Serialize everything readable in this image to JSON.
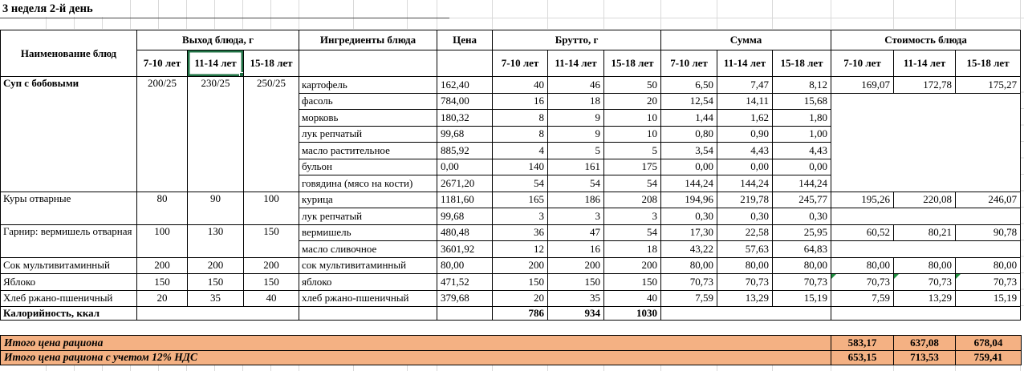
{
  "title": "3 неделя 2-й день",
  "selection": {
    "selected_cell_label": "11-14 лет"
  },
  "colors": {
    "total_row_bg": "#F4B183",
    "selection_border": "#217346",
    "flag_triangle": "#1E8E3E"
  },
  "table": {
    "headers": {
      "name": "Наименование блюд",
      "output": "Выход блюда, г",
      "ingredients": "Ингредиенты блюда",
      "price": "Цена",
      "gross": "Брутто, г",
      "sum": "Сумма",
      "cost": "Стоимость блюда",
      "age1": "7-10 лет",
      "age2": "11-14 лет",
      "age3": "15-18 лет"
    },
    "dishes": [
      {
        "name": "Суп с бобовыми",
        "output": [
          "200/25",
          "230/25",
          "250/25"
        ],
        "cost": [
          "169,07",
          "172,78",
          "175,27"
        ],
        "rows": [
          {
            "ingredient": "картофель",
            "price": "162,40",
            "gross": [
              "40",
              "46",
              "50"
            ],
            "sum": [
              "6,50",
              "7,47",
              "8,12"
            ]
          },
          {
            "ingredient": "фасоль",
            "price": "784,00",
            "gross": [
              "16",
              "18",
              "20"
            ],
            "sum": [
              "12,54",
              "14,11",
              "15,68"
            ]
          },
          {
            "ingredient": "морковь",
            "price": "180,32",
            "gross": [
              "8",
              "9",
              "10"
            ],
            "sum": [
              "1,44",
              "1,62",
              "1,80"
            ]
          },
          {
            "ingredient": "лук репчатый",
            "price": "99,68",
            "gross": [
              "8",
              "9",
              "10"
            ],
            "sum": [
              "0,80",
              "0,90",
              "1,00"
            ]
          },
          {
            "ingredient": "масло растительное",
            "price": "885,92",
            "gross": [
              "4",
              "5",
              "5"
            ],
            "sum": [
              "3,54",
              "4,43",
              "4,43"
            ]
          },
          {
            "ingredient": "бульон",
            "price": "0,00",
            "gross": [
              "140",
              "161",
              "175"
            ],
            "sum": [
              "0,00",
              "0,00",
              "0,00"
            ]
          },
          {
            "ingredient": "говядина (мясо на кости)",
            "price": "2671,20",
            "gross": [
              "54",
              "54",
              "54"
            ],
            "sum": [
              "144,24",
              "144,24",
              "144,24"
            ]
          }
        ]
      },
      {
        "name": "Куры отварные",
        "output": [
          "80",
          "90",
          "100"
        ],
        "cost": [
          "195,26",
          "220,08",
          "246,07"
        ],
        "rows": [
          {
            "ingredient": "курица",
            "price": "1181,60",
            "gross": [
              "165",
              "186",
              "208"
            ],
            "sum": [
              "194,96",
              "219,78",
              "245,77"
            ]
          },
          {
            "ingredient": "лук репчатый",
            "price": "99,68",
            "gross": [
              "3",
              "3",
              "3"
            ],
            "sum": [
              "0,30",
              "0,30",
              "0,30"
            ]
          }
        ]
      },
      {
        "name": "Гарнир: вермишель отварная",
        "output": [
          "100",
          "130",
          "150"
        ],
        "cost": [
          "60,52",
          "80,21",
          "90,78"
        ],
        "rows": [
          {
            "ingredient": "вермишель",
            "price": "480,48",
            "gross": [
              "36",
              "47",
              "54"
            ],
            "sum": [
              "17,30",
              "22,58",
              "25,95"
            ]
          },
          {
            "ingredient": "масло сливочное",
            "price": "3601,92",
            "gross": [
              "12",
              "16",
              "18"
            ],
            "sum": [
              "43,22",
              "57,63",
              "64,83"
            ]
          }
        ]
      },
      {
        "name": "Сок мультивитаминный",
        "output": [
          "200",
          "200",
          "200"
        ],
        "cost": [
          "80,00",
          "80,00",
          "80,00"
        ],
        "rows": [
          {
            "ingredient": "сок мультивитаминный",
            "price": "80,00",
            "gross": [
              "200",
              "200",
              "200"
            ],
            "sum": [
              "80,00",
              "80,00",
              "80,00"
            ]
          }
        ]
      },
      {
        "name": "Яблоко",
        "output": [
          "150",
          "150",
          "150"
        ],
        "cost": [
          "70,73",
          "70,73",
          "70,73"
        ],
        "rows": [
          {
            "ingredient": "яблоко",
            "price": "471,52",
            "gross": [
              "150",
              "150",
              "150"
            ],
            "sum": [
              "70,73",
              "70,73",
              "70,73"
            ]
          }
        ]
      },
      {
        "name": "Хлеб ржано-пшеничный",
        "output": [
          "20",
          "35",
          "40"
        ],
        "cost": [
          "7,59",
          "13,29",
          "15,19"
        ],
        "rows": [
          {
            "ingredient": "хлеб ржано-пшеничный",
            "price": "379,68",
            "gross": [
              "20",
              "35",
              "40"
            ],
            "sum": [
              "7,59",
              "13,29",
              "15,19"
            ]
          }
        ]
      }
    ],
    "calories": {
      "label": "Калорийность, ккал",
      "values": [
        "786",
        "934",
        "1030"
      ]
    }
  },
  "totals": [
    {
      "label": "Итого цена рациона",
      "values": [
        "583,17",
        "637,08",
        "678,04"
      ]
    },
    {
      "label": "Итого цена рациона с учетом 12% НДС",
      "values": [
        "653,15",
        "713,53",
        "759,41"
      ]
    }
  ]
}
